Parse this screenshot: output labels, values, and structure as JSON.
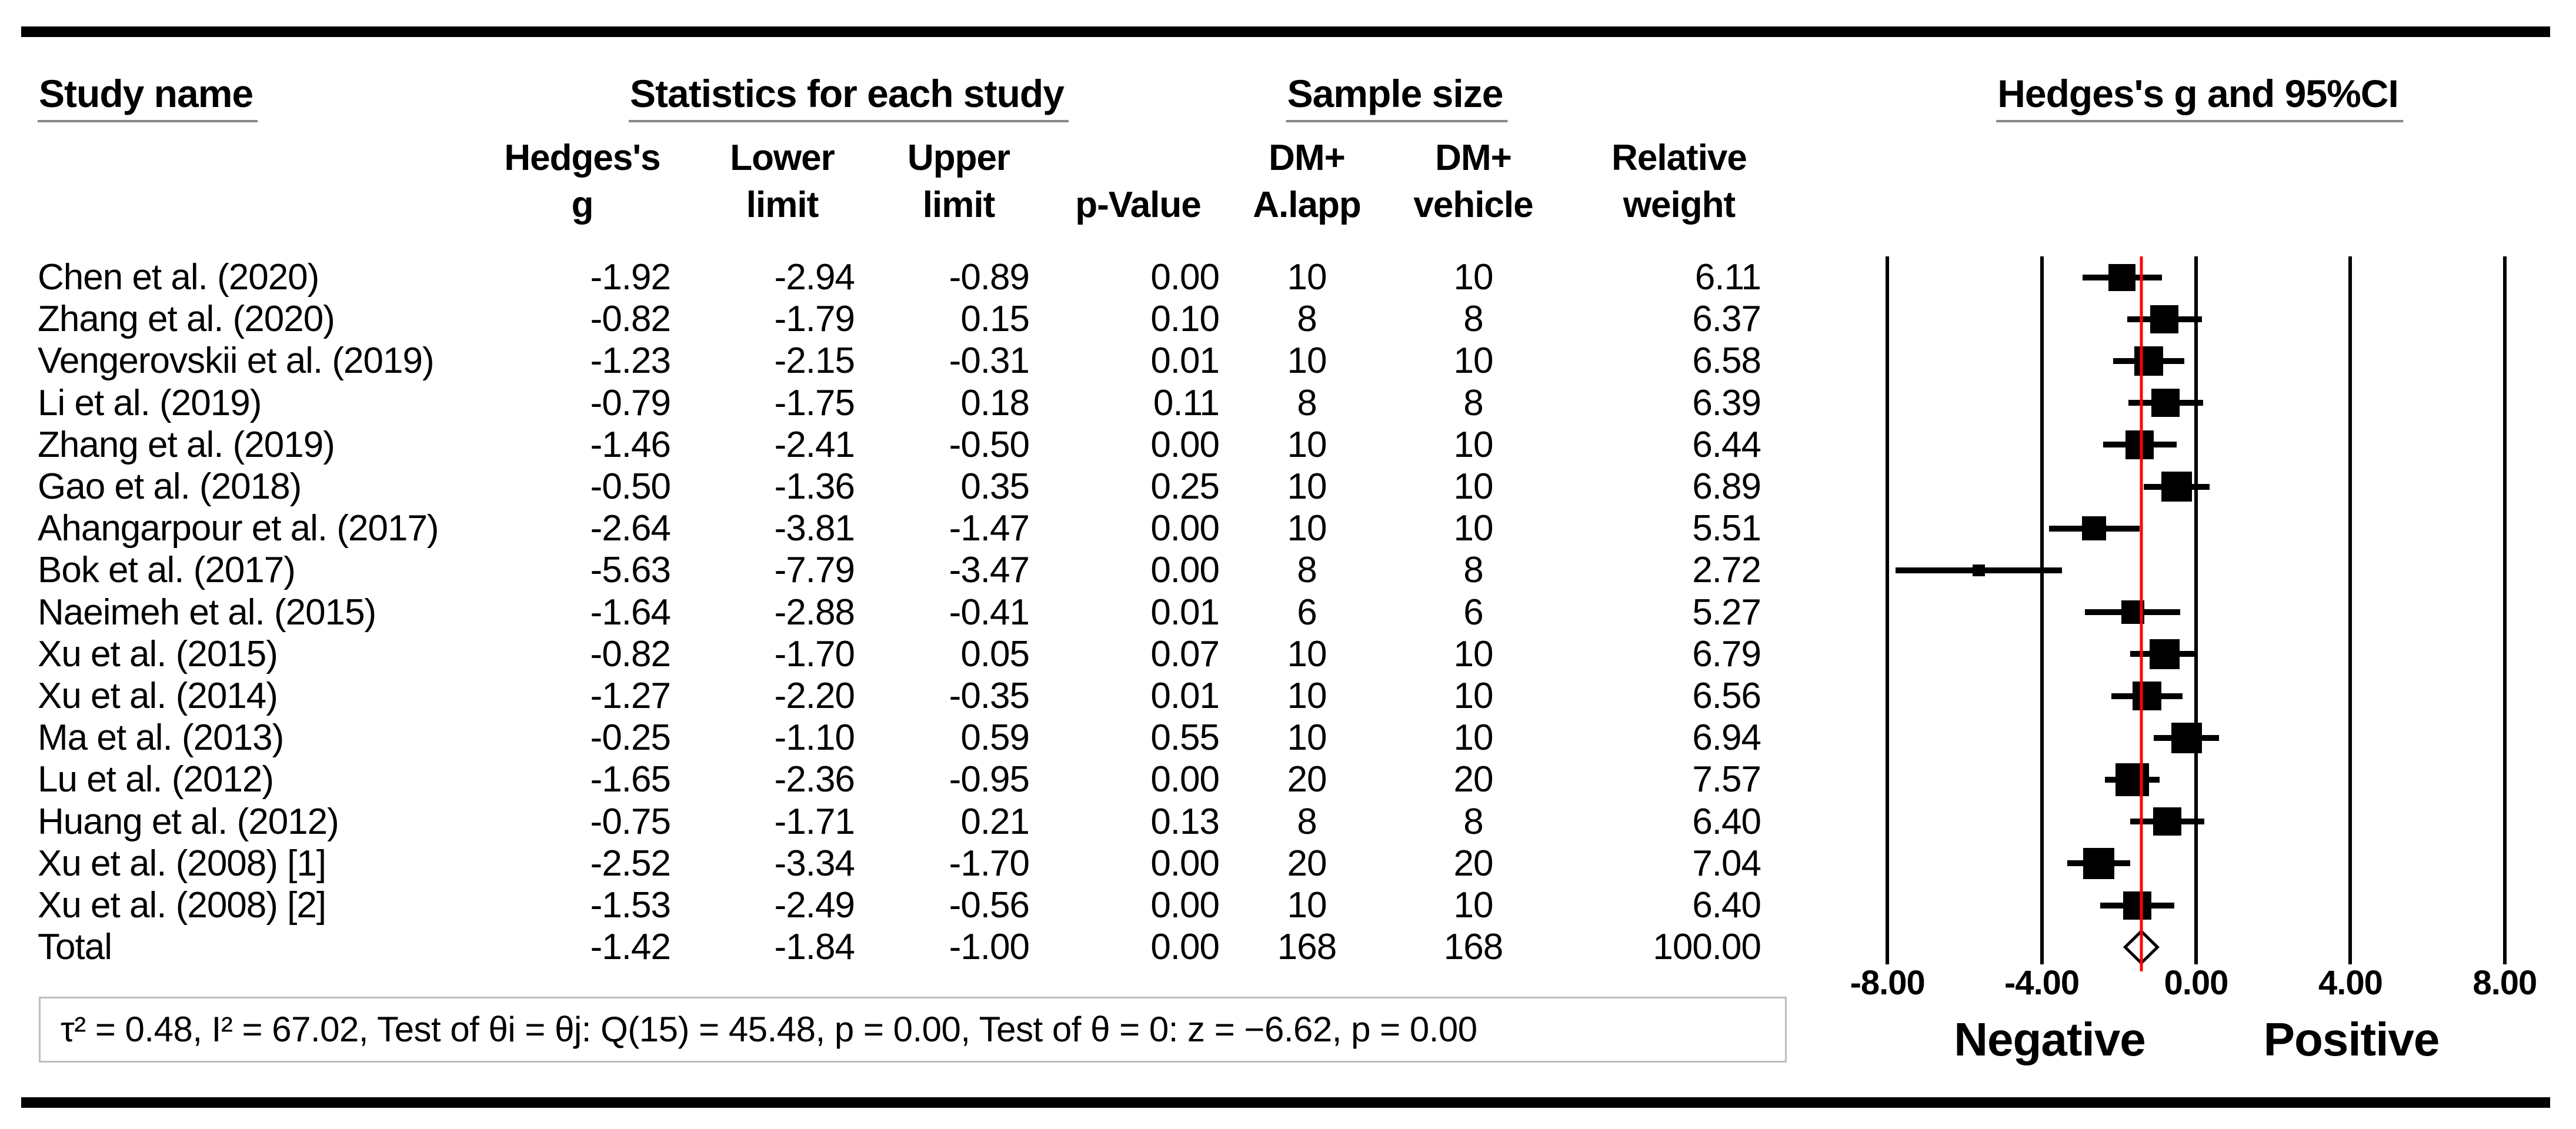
{
  "header": {
    "study": "Study name",
    "stats_group": "Statistics for each study",
    "sample_group": "Sample size",
    "plot_group": "Hedges's g and 95%CI",
    "columns": [
      {
        "id": "g",
        "lines": [
          "Hedges's",
          "g"
        ]
      },
      {
        "id": "lower",
        "lines": [
          "Lower",
          "limit"
        ]
      },
      {
        "id": "upper",
        "lines": [
          "Upper",
          "limit"
        ]
      },
      {
        "id": "p",
        "lines": [
          "",
          "p-Value"
        ]
      },
      {
        "id": "n_treat",
        "lines": [
          "DM+",
          "A.lapp"
        ]
      },
      {
        "id": "n_vehicle",
        "lines": [
          "DM+",
          "vehicle"
        ]
      },
      {
        "id": "weight",
        "lines": [
          "Relative",
          "weight"
        ]
      }
    ]
  },
  "rows": [
    {
      "study": "Chen et al. (2020)",
      "g": "-1.92",
      "lower": "-2.94",
      "upper": "-0.89",
      "p": "0.00",
      "n_treat": "10",
      "n_vehicle": "10",
      "weight": "6.11"
    },
    {
      "study": "Zhang et al. (2020)",
      "g": "-0.82",
      "lower": "-1.79",
      "upper": "0.15",
      "p": "0.10",
      "n_treat": "8",
      "n_vehicle": "8",
      "weight": "6.37"
    },
    {
      "study": "Vengerovskii et al. (2019)",
      "g": "-1.23",
      "lower": "-2.15",
      "upper": "-0.31",
      "p": "0.01",
      "n_treat": "10",
      "n_vehicle": "10",
      "weight": "6.58"
    },
    {
      "study": "Li et al. (2019)",
      "g": "-0.79",
      "lower": "-1.75",
      "upper": "0.18",
      "p": "0.11",
      "n_treat": "8",
      "n_vehicle": "8",
      "weight": "6.39"
    },
    {
      "study": "Zhang et al. (2019)",
      "g": "-1.46",
      "lower": "-2.41",
      "upper": "-0.50",
      "p": "0.00",
      "n_treat": "10",
      "n_vehicle": "10",
      "weight": "6.44"
    },
    {
      "study": "Gao et al. (2018)",
      "g": "-0.50",
      "lower": "-1.36",
      "upper": "0.35",
      "p": "0.25",
      "n_treat": "10",
      "n_vehicle": "10",
      "weight": "6.89"
    },
    {
      "study": "Ahangarpour et al. (2017)",
      "g": "-2.64",
      "lower": "-3.81",
      "upper": "-1.47",
      "p": "0.00",
      "n_treat": "10",
      "n_vehicle": "10",
      "weight": "5.51"
    },
    {
      "study": "Bok et al. (2017)",
      "g": "-5.63",
      "lower": "-7.79",
      "upper": "-3.47",
      "p": "0.00",
      "n_treat": "8",
      "n_vehicle": "8",
      "weight": "2.72"
    },
    {
      "study": "Naeimeh et al. (2015)",
      "g": "-1.64",
      "lower": "-2.88",
      "upper": "-0.41",
      "p": "0.01",
      "n_treat": "6",
      "n_vehicle": "6",
      "weight": "5.27"
    },
    {
      "study": "Xu et al. (2015)",
      "g": "-0.82",
      "lower": "-1.70",
      "upper": "0.05",
      "p": "0.07",
      "n_treat": "10",
      "n_vehicle": "10",
      "weight": "6.79"
    },
    {
      "study": "Xu et al. (2014)",
      "g": "-1.27",
      "lower": "-2.20",
      "upper": "-0.35",
      "p": "0.01",
      "n_treat": "10",
      "n_vehicle": "10",
      "weight": "6.56"
    },
    {
      "study": "Ma et al. (2013)",
      "g": "-0.25",
      "lower": "-1.10",
      "upper": "0.59",
      "p": "0.55",
      "n_treat": "10",
      "n_vehicle": "10",
      "weight": "6.94"
    },
    {
      "study": "Lu et al. (2012)",
      "g": "-1.65",
      "lower": "-2.36",
      "upper": "-0.95",
      "p": "0.00",
      "n_treat": "20",
      "n_vehicle": "20",
      "weight": "7.57"
    },
    {
      "study": "Huang et al. (2012)",
      "g": "-0.75",
      "lower": "-1.71",
      "upper": "0.21",
      "p": "0.13",
      "n_treat": "8",
      "n_vehicle": "8",
      "weight": "6.40"
    },
    {
      "study": "Xu et al. (2008) [1]",
      "g": "-2.52",
      "lower": "-3.34",
      "upper": "-1.70",
      "p": "0.00",
      "n_treat": "20",
      "n_vehicle": "20",
      "weight": "7.04"
    },
    {
      "study": "Xu et al. (2008) [2]",
      "g": "-1.53",
      "lower": "-2.49",
      "upper": "-0.56",
      "p": "0.00",
      "n_treat": "10",
      "n_vehicle": "10",
      "weight": "6.40"
    }
  ],
  "total_row": {
    "study": "Total",
    "g": "-1.42",
    "lower": "-1.84",
    "upper": "-1.00",
    "p": "0.00",
    "n_treat": "168",
    "n_vehicle": "168",
    "weight": "100.00"
  },
  "footer": {
    "heterogeneity": "τ² = 0.48, I² = 67.02, Test of θi = θj: Q(15) = 45.48, p = 0.00, Test of θ = 0: z = −6.62, p = 0.00"
  },
  "chart_data": {
    "type": "forest",
    "title": "Hedges's g and 95%CI",
    "xlabel_left": "Negative",
    "xlabel_right": "Positive",
    "xlim": [
      -8.9,
      8.9
    ],
    "ticks": [
      -8,
      -4,
      0,
      4,
      8
    ],
    "tick_labels": [
      "-8.00",
      "-4.00",
      "0.00",
      "4.00",
      "8.00"
    ],
    "grid": "vertical-lines-at-ticks",
    "ref_line": {
      "x": -1.42,
      "color": "#ff0000"
    },
    "marker_color": "#000000",
    "studies": [
      {
        "name": "Chen et al. (2020)",
        "g": -1.92,
        "lower": -2.94,
        "upper": -0.89,
        "weight": 6.11
      },
      {
        "name": "Zhang et al. (2020)",
        "g": -0.82,
        "lower": -1.79,
        "upper": 0.15,
        "weight": 6.37
      },
      {
        "name": "Vengerovskii et al. (2019)",
        "g": -1.23,
        "lower": -2.15,
        "upper": -0.31,
        "weight": 6.58
      },
      {
        "name": "Li et al. (2019)",
        "g": -0.79,
        "lower": -1.75,
        "upper": 0.18,
        "weight": 6.39
      },
      {
        "name": "Zhang et al. (2019)",
        "g": -1.46,
        "lower": -2.41,
        "upper": -0.5,
        "weight": 6.44
      },
      {
        "name": "Gao et al. (2018)",
        "g": -0.5,
        "lower": -1.36,
        "upper": 0.35,
        "weight": 6.89
      },
      {
        "name": "Ahangarpour et al. (2017)",
        "g": -2.64,
        "lower": -3.81,
        "upper": -1.47,
        "weight": 5.51
      },
      {
        "name": "Bok et al. (2017)",
        "g": -5.63,
        "lower": -7.79,
        "upper": -3.47,
        "weight": 2.72
      },
      {
        "name": "Naeimeh et al. (2015)",
        "g": -1.64,
        "lower": -2.88,
        "upper": -0.41,
        "weight": 5.27
      },
      {
        "name": "Xu et al. (2015)",
        "g": -0.82,
        "lower": -1.7,
        "upper": 0.05,
        "weight": 6.79
      },
      {
        "name": "Xu et al. (2014)",
        "g": -1.27,
        "lower": -2.2,
        "upper": -0.35,
        "weight": 6.56
      },
      {
        "name": "Ma et al. (2013)",
        "g": -0.25,
        "lower": -1.1,
        "upper": 0.59,
        "weight": 6.94
      },
      {
        "name": "Lu et al. (2012)",
        "g": -1.65,
        "lower": -2.36,
        "upper": -0.95,
        "weight": 7.57
      },
      {
        "name": "Huang et al. (2012)",
        "g": -0.75,
        "lower": -1.71,
        "upper": 0.21,
        "weight": 6.4
      },
      {
        "name": "Xu et al. (2008) [1]",
        "g": -2.52,
        "lower": -3.34,
        "upper": -1.7,
        "weight": 7.04
      },
      {
        "name": "Xu et al. (2008) [2]",
        "g": -1.53,
        "lower": -2.49,
        "upper": -0.56,
        "weight": 6.4
      }
    ],
    "total": {
      "name": "Total",
      "g": -1.42,
      "lower": -1.84,
      "upper": -1.0,
      "weight": 100.0
    }
  }
}
